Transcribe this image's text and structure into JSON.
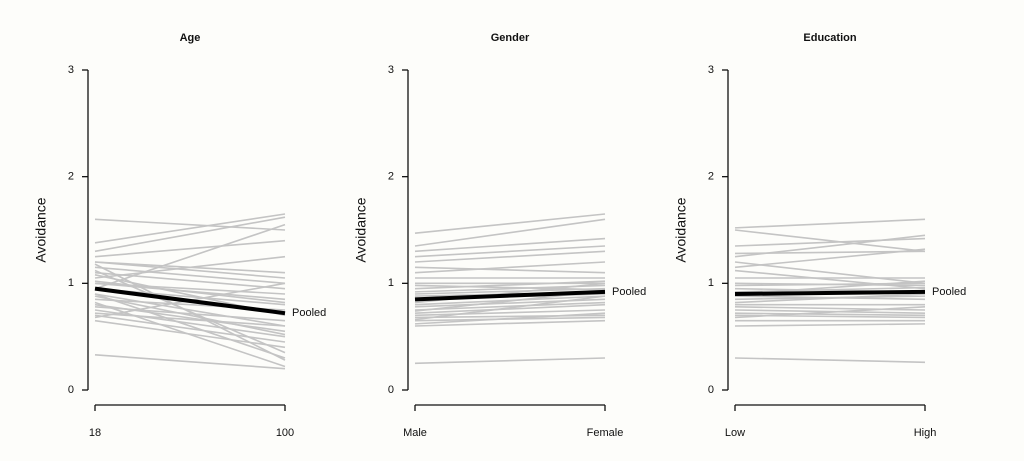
{
  "chart_data": [
    {
      "type": "line",
      "title": "Age",
      "y_label": "Avoidance",
      "categories": [
        "18",
        "100"
      ],
      "ylim": [
        0,
        3
      ],
      "yticks": [
        0,
        1,
        2,
        3
      ],
      "series": [
        {
          "color": "#c4c4c4",
          "values": [
            1.6,
            1.5
          ]
        },
        {
          "color": "#c4c4c4",
          "values": [
            1.38,
            1.65
          ]
        },
        {
          "color": "#c4c4c4",
          "values": [
            1.3,
            1.62
          ]
        },
        {
          "color": "#c4c4c4",
          "values": [
            1.25,
            1.4
          ]
        },
        {
          "color": "#c4c4c4",
          "values": [
            1.2,
            1.1
          ]
        },
        {
          "color": "#c4c4c4",
          "values": [
            1.15,
            1.0
          ]
        },
        {
          "color": "#c4c4c4",
          "values": [
            1.1,
            0.95
          ]
        },
        {
          "color": "#c4c4c4",
          "values": [
            1.05,
            1.25
          ]
        },
        {
          "color": "#c4c4c4",
          "values": [
            1.0,
            0.9
          ]
        },
        {
          "color": "#c4c4c4",
          "values": [
            0.95,
            0.8
          ]
        },
        {
          "color": "#c4c4c4",
          "values": [
            0.9,
            0.6
          ]
        },
        {
          "color": "#c4c4c4",
          "values": [
            0.85,
            0.75
          ]
        },
        {
          "color": "#c4c4c4",
          "values": [
            0.8,
            0.55
          ]
        },
        {
          "color": "#c4c4c4",
          "values": [
            0.75,
            0.5
          ]
        },
        {
          "color": "#c4c4c4",
          "values": [
            0.7,
            0.45
          ]
        },
        {
          "color": "#c4c4c4",
          "values": [
            0.65,
            0.4
          ]
        },
        {
          "color": "#c4c4c4",
          "values": [
            1.12,
            0.35
          ]
        },
        {
          "color": "#c4c4c4",
          "values": [
            0.9,
            0.3
          ]
        },
        {
          "color": "#c4c4c4",
          "values": [
            0.33,
            0.2
          ]
        },
        {
          "color": "#c4c4c4",
          "values": [
            1.0,
            0.85
          ]
        },
        {
          "color": "#c4c4c4",
          "values": [
            1.2,
            1.05
          ]
        },
        {
          "color": "#c4c4c4",
          "values": [
            0.78,
            0.65
          ]
        },
        {
          "color": "#c4c4c4",
          "values": [
            0.68,
            1.0
          ]
        },
        {
          "color": "#c4c4c4",
          "values": [
            1.08,
            0.7
          ]
        },
        {
          "color": "#c4c4c4",
          "values": [
            0.95,
            1.55
          ]
        },
        {
          "color": "#c4c4c4",
          "values": [
            0.88,
            0.52
          ]
        },
        {
          "color": "#c4c4c4",
          "values": [
            1.18,
            0.28
          ]
        },
        {
          "color": "#c4c4c4",
          "values": [
            0.72,
            0.6
          ]
        },
        {
          "color": "#c4c4c4",
          "values": [
            1.02,
            0.82
          ]
        },
        {
          "color": "#c4c4c4",
          "values": [
            0.82,
            0.22
          ]
        },
        {
          "name": "Pooled",
          "color": "#000000",
          "values": [
            0.95,
            0.72
          ]
        }
      ]
    },
    {
      "type": "line",
      "title": "Gender",
      "y_label": "Avoidance",
      "categories": [
        "Male",
        "Female"
      ],
      "ylim": [
        0,
        3
      ],
      "yticks": [
        0,
        1,
        2,
        3
      ],
      "series": [
        {
          "color": "#c4c4c4",
          "values": [
            1.47,
            1.65
          ]
        },
        {
          "color": "#c4c4c4",
          "values": [
            1.35,
            1.6
          ]
        },
        {
          "color": "#c4c4c4",
          "values": [
            1.3,
            1.42
          ]
        },
        {
          "color": "#c4c4c4",
          "values": [
            1.25,
            1.35
          ]
        },
        {
          "color": "#c4c4c4",
          "values": [
            1.2,
            1.3
          ]
        },
        {
          "color": "#c4c4c4",
          "values": [
            1.1,
            1.2
          ]
        },
        {
          "color": "#c4c4c4",
          "values": [
            1.05,
            1.05
          ]
        },
        {
          "color": "#c4c4c4",
          "values": [
            1.0,
            1.0
          ]
        },
        {
          "color": "#c4c4c4",
          "values": [
            0.95,
            1.02
          ]
        },
        {
          "color": "#c4c4c4",
          "values": [
            0.9,
            0.95
          ]
        },
        {
          "color": "#c4c4c4",
          "values": [
            0.85,
            0.9
          ]
        },
        {
          "color": "#c4c4c4",
          "values": [
            0.82,
            1.0
          ]
        },
        {
          "color": "#c4c4c4",
          "values": [
            0.8,
            0.88
          ]
        },
        {
          "color": "#c4c4c4",
          "values": [
            0.78,
            0.85
          ]
        },
        {
          "color": "#c4c4c4",
          "values": [
            0.75,
            0.82
          ]
        },
        {
          "color": "#c4c4c4",
          "values": [
            0.72,
            0.8
          ]
        },
        {
          "color": "#c4c4c4",
          "values": [
            0.7,
            0.75
          ]
        },
        {
          "color": "#c4c4c4",
          "values": [
            0.68,
            0.7
          ]
        },
        {
          "color": "#c4c4c4",
          "values": [
            0.65,
            0.68
          ]
        },
        {
          "color": "#c4c4c4",
          "values": [
            0.6,
            0.65
          ]
        },
        {
          "color": "#c4c4c4",
          "values": [
            0.25,
            0.3
          ]
        },
        {
          "color": "#c4c4c4",
          "values": [
            0.88,
            0.92
          ]
        },
        {
          "color": "#c4c4c4",
          "values": [
            0.92,
            0.98
          ]
        },
        {
          "color": "#c4c4c4",
          "values": [
            0.74,
            0.93
          ]
        },
        {
          "color": "#c4c4c4",
          "values": [
            0.66,
            0.88
          ]
        },
        {
          "color": "#c4c4c4",
          "values": [
            1.15,
            1.1
          ]
        },
        {
          "color": "#c4c4c4",
          "values": [
            0.98,
            0.94
          ]
        },
        {
          "color": "#c4c4c4",
          "values": [
            0.62,
            0.72
          ]
        },
        {
          "name": "Pooled",
          "color": "#000000",
          "values": [
            0.85,
            0.92
          ]
        }
      ]
    },
    {
      "type": "line",
      "title": "Education",
      "y_label": "Avoidance",
      "categories": [
        "Low",
        "High"
      ],
      "ylim": [
        0,
        3
      ],
      "yticks": [
        0,
        1,
        2,
        3
      ],
      "series": [
        {
          "color": "#c4c4c4",
          "values": [
            1.52,
            1.6
          ]
        },
        {
          "color": "#c4c4c4",
          "values": [
            1.5,
            1.3
          ]
        },
        {
          "color": "#c4c4c4",
          "values": [
            1.35,
            1.42
          ]
        },
        {
          "color": "#c4c4c4",
          "values": [
            1.28,
            1.3
          ]
        },
        {
          "color": "#c4c4c4",
          "values": [
            1.25,
            1.45
          ]
        },
        {
          "color": "#c4c4c4",
          "values": [
            1.2,
            1.0
          ]
        },
        {
          "color": "#c4c4c4",
          "values": [
            1.12,
            0.95
          ]
        },
        {
          "color": "#c4c4c4",
          "values": [
            1.05,
            1.05
          ]
        },
        {
          "color": "#c4c4c4",
          "values": [
            1.0,
            0.98
          ]
        },
        {
          "color": "#c4c4c4",
          "values": [
            0.95,
            0.92
          ]
        },
        {
          "color": "#c4c4c4",
          "values": [
            0.9,
            1.02
          ]
        },
        {
          "color": "#c4c4c4",
          "values": [
            0.88,
            0.85
          ]
        },
        {
          "color": "#c4c4c4",
          "values": [
            0.85,
            0.88
          ]
        },
        {
          "color": "#c4c4c4",
          "values": [
            0.8,
            0.8
          ]
        },
        {
          "color": "#c4c4c4",
          "values": [
            0.78,
            0.75
          ]
        },
        {
          "color": "#c4c4c4",
          "values": [
            0.75,
            0.72
          ]
        },
        {
          "color": "#c4c4c4",
          "values": [
            0.72,
            0.7
          ]
        },
        {
          "color": "#c4c4c4",
          "values": [
            0.7,
            0.68
          ]
        },
        {
          "color": "#c4c4c4",
          "values": [
            0.65,
            0.65
          ]
        },
        {
          "color": "#c4c4c4",
          "values": [
            0.6,
            0.62
          ]
        },
        {
          "color": "#c4c4c4",
          "values": [
            0.3,
            0.26
          ]
        },
        {
          "color": "#c4c4c4",
          "values": [
            1.15,
            1.32
          ]
        },
        {
          "color": "#c4c4c4",
          "values": [
            0.92,
            0.96
          ]
        },
        {
          "color": "#c4c4c4",
          "values": [
            0.82,
            0.9
          ]
        },
        {
          "color": "#c4c4c4",
          "values": [
            0.98,
            1.0
          ]
        },
        {
          "color": "#c4c4c4",
          "values": [
            0.68,
            0.78
          ]
        },
        {
          "name": "Pooled",
          "color": "#000000",
          "values": [
            0.9,
            0.92
          ]
        }
      ]
    }
  ]
}
